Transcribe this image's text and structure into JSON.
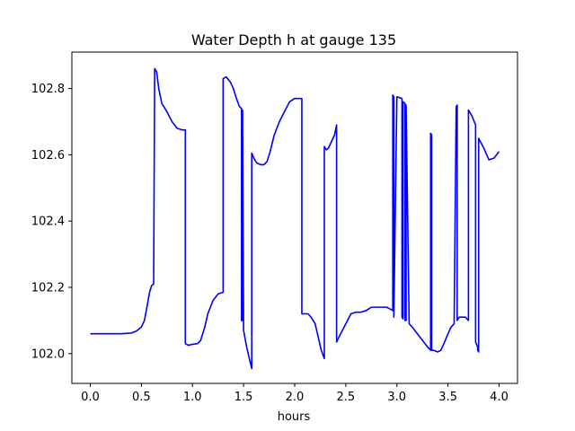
{
  "chart_data": {
    "type": "line",
    "title": "Water Depth h at gauge 135",
    "xlabel": "hours",
    "ylabel": "",
    "xlim": [
      -0.18,
      4.18
    ],
    "ylim": [
      101.91,
      102.91
    ],
    "xticks": [
      0.0,
      0.5,
      1.0,
      1.5,
      2.0,
      2.5,
      3.0,
      3.5,
      4.0
    ],
    "xtick_labels": [
      "0.0",
      "0.5",
      "1.0",
      "1.5",
      "2.0",
      "2.5",
      "3.0",
      "3.5",
      "4.0"
    ],
    "yticks": [
      102.0,
      102.2,
      102.4,
      102.6,
      102.8
    ],
    "ytick_labels": [
      "102.0",
      "102.2",
      "102.4",
      "102.6",
      "102.8"
    ],
    "grid": false,
    "colors": {
      "line": "#0000ff",
      "axes": "#000000",
      "background": "#ffffff"
    },
    "series": [
      {
        "x": [
          0.0,
          0.1,
          0.2,
          0.3,
          0.4,
          0.45,
          0.5,
          0.53,
          0.56,
          0.58,
          0.6,
          0.62,
          0.63,
          0.635,
          0.65,
          0.67,
          0.7,
          0.75,
          0.8,
          0.85,
          0.9,
          0.93,
          0.93,
          0.96,
          1.0,
          1.05,
          1.08,
          1.12,
          1.15,
          1.2,
          1.25,
          1.3,
          1.3,
          1.33,
          1.37,
          1.4,
          1.43,
          1.46,
          1.48,
          1.48,
          1.49,
          1.49,
          1.5,
          1.53,
          1.56,
          1.58,
          1.58,
          1.6,
          1.63,
          1.67,
          1.7,
          1.73,
          1.76,
          1.8,
          1.85,
          1.9,
          1.95,
          2.0,
          2.03,
          2.07,
          2.07,
          2.1,
          2.13,
          2.16,
          2.2,
          2.23,
          2.26,
          2.29,
          2.29,
          2.31,
          2.33,
          2.36,
          2.39,
          2.41,
          2.41,
          2.45,
          2.5,
          2.55,
          2.6,
          2.65,
          2.7,
          2.75,
          2.8,
          2.85,
          2.9,
          2.93,
          2.96,
          2.96,
          2.97,
          2.97,
          3.0,
          3.05,
          3.05,
          3.06,
          3.06,
          3.08,
          3.08,
          3.09,
          3.09,
          3.12,
          3.15,
          3.2,
          3.25,
          3.3,
          3.33,
          3.33,
          3.34,
          3.34,
          3.36,
          3.4,
          3.43,
          3.46,
          3.5,
          3.53,
          3.56,
          3.58,
          3.58,
          3.59,
          3.59,
          3.61,
          3.64,
          3.67,
          3.7,
          3.7,
          3.73,
          3.77,
          3.77,
          3.79,
          3.79,
          3.8,
          3.8,
          3.85,
          3.9,
          3.95,
          4.0
        ],
        "y": [
          102.06,
          102.06,
          102.06,
          102.06,
          102.062,
          102.068,
          102.08,
          102.1,
          102.15,
          102.185,
          102.205,
          102.21,
          102.86,
          102.858,
          102.85,
          102.8,
          102.755,
          102.73,
          102.7,
          102.68,
          102.675,
          102.675,
          102.03,
          102.025,
          102.028,
          102.03,
          102.04,
          102.08,
          102.12,
          102.16,
          102.18,
          102.185,
          102.83,
          102.835,
          102.82,
          102.8,
          102.77,
          102.745,
          102.74,
          102.1,
          102.1,
          102.735,
          102.07,
          102.02,
          101.98,
          101.955,
          102.605,
          102.59,
          102.575,
          102.57,
          102.57,
          102.58,
          102.61,
          102.66,
          102.7,
          102.73,
          102.76,
          102.77,
          102.77,
          102.77,
          102.12,
          102.12,
          102.12,
          102.11,
          102.09,
          102.05,
          102.01,
          101.985,
          102.625,
          102.615,
          102.62,
          102.64,
          102.66,
          102.69,
          102.035,
          102.06,
          102.09,
          102.12,
          102.125,
          102.125,
          102.13,
          102.14,
          102.14,
          102.14,
          102.14,
          102.135,
          102.13,
          102.78,
          102.775,
          102.11,
          102.775,
          102.77,
          102.11,
          102.105,
          102.76,
          102.755,
          102.1,
          102.1,
          102.75,
          102.09,
          102.08,
          102.06,
          102.04,
          102.02,
          102.01,
          102.665,
          102.66,
          102.01,
          102.01,
          102.005,
          102.01,
          102.03,
          102.06,
          102.08,
          102.09,
          102.74,
          102.745,
          102.75,
          102.1,
          102.11,
          102.11,
          102.11,
          102.1,
          102.735,
          102.72,
          102.69,
          102.035,
          102.02,
          102.01,
          102.005,
          102.65,
          102.62,
          102.585,
          102.59,
          102.61
        ]
      }
    ]
  }
}
